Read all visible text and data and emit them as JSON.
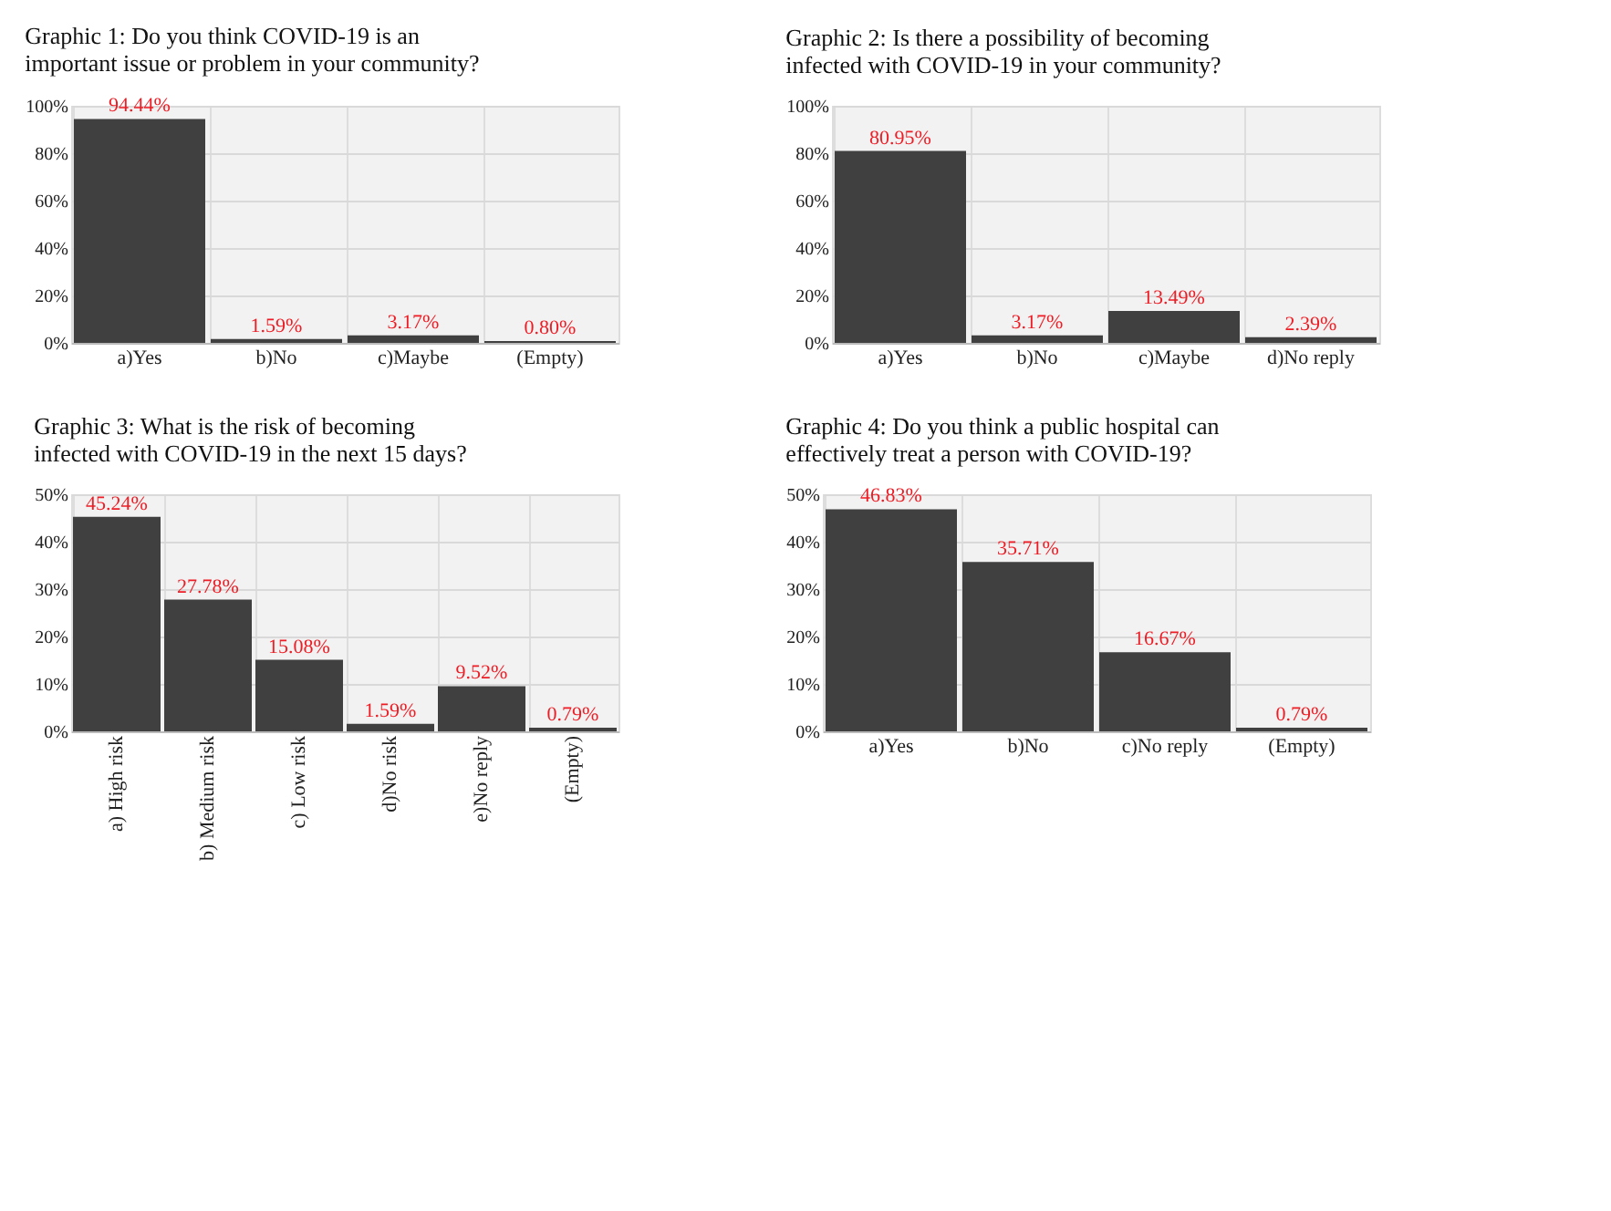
{
  "chart_data": [
    {
      "type": "bar",
      "title": "Graphic 1: Do you think COVID-19 is an important issue or problem in your community?",
      "categories": [
        "a)Yes",
        "b)No",
        "c)Maybe",
        "(Empty)"
      ],
      "values": [
        94.44,
        1.59,
        3.17,
        0.8
      ],
      "value_labels": [
        "94.44%",
        "1.59%",
        "3.17%",
        "0.80%"
      ],
      "color": "#404040",
      "ylim": [
        0,
        100
      ],
      "yticks": [
        {
          "value": 0,
          "label": "0%"
        },
        {
          "value": 20,
          "label": "20%"
        },
        {
          "value": 40,
          "label": "40%"
        },
        {
          "value": 60,
          "label": "60%"
        },
        {
          "value": 80,
          "label": "80%"
        },
        {
          "value": 100,
          "label": "100%"
        }
      ],
      "grid": true
    },
    {
      "type": "bar",
      "title": "Graphic 2: Is there a possibility of becoming infected with COVID-19 in your community?",
      "categories": [
        "a)Yes",
        "b)No",
        "c)Maybe",
        "d)No reply"
      ],
      "values": [
        80.95,
        3.17,
        13.49,
        2.39
      ],
      "value_labels": [
        "80.95%",
        "3.17%",
        "13.49%",
        "2.39%"
      ],
      "color": "#404040",
      "ylim": [
        0,
        100
      ],
      "yticks": [
        {
          "value": 0,
          "label": "0%"
        },
        {
          "value": 20,
          "label": "20%"
        },
        {
          "value": 40,
          "label": "40%"
        },
        {
          "value": 60,
          "label": "60%"
        },
        {
          "value": 80,
          "label": "80%"
        },
        {
          "value": 100,
          "label": "100%"
        }
      ],
      "grid": true
    },
    {
      "type": "bar",
      "title": "Graphic 3: What is the risk of becoming infected with COVID-19 in the next 15 days?",
      "categories": [
        "a) High risk",
        "b) Medium risk",
        "c) Low risk",
        "d)No risk",
        "e)No reply",
        "(Empty)"
      ],
      "values": [
        45.24,
        27.78,
        15.08,
        1.59,
        9.52,
        0.79
      ],
      "value_labels": [
        "45.24%",
        "27.78%",
        "15.08%",
        "1.59%",
        "9.52%",
        "0.79%"
      ],
      "color": "#404040",
      "ylim": [
        0,
        50
      ],
      "yticks": [
        {
          "value": 0,
          "label": "0%"
        },
        {
          "value": 10,
          "label": "10%"
        },
        {
          "value": 20,
          "label": "20%"
        },
        {
          "value": 30,
          "label": "30%"
        },
        {
          "value": 40,
          "label": "40%"
        },
        {
          "value": 50,
          "label": "50%"
        }
      ],
      "grid": true
    },
    {
      "type": "bar",
      "title": "Graphic 4: Do you think a public hospital can effectively treat a person with COVID-19?",
      "categories": [
        "a)Yes",
        "b)No",
        "c)No reply",
        "(Empty)"
      ],
      "values": [
        46.83,
        35.71,
        16.67,
        0.79
      ],
      "value_labels": [
        "46.83%",
        "35.71%",
        "16.67%",
        "0.79%"
      ],
      "color": "#404040",
      "ylim": [
        0,
        50
      ],
      "yticks": [
        {
          "value": 0,
          "label": "0%"
        },
        {
          "value": 10,
          "label": "10%"
        },
        {
          "value": 20,
          "label": "20%"
        },
        {
          "value": 30,
          "label": "30%"
        },
        {
          "value": 40,
          "label": "40%"
        },
        {
          "value": 50,
          "label": "50%"
        }
      ],
      "grid": true
    }
  ]
}
